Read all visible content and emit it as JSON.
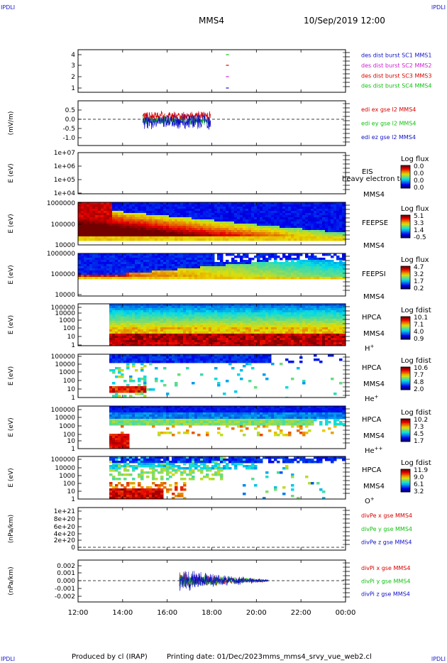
{
  "corner_label": "IPDLI",
  "header": {
    "spacecraft": "MMS4",
    "datetime": "10/Sep/2019 12:00"
  },
  "footer": {
    "produced_by": "Produced by cl (IRAP)",
    "printing_date": "Printing date: 01/Dec/2023",
    "script": "mms_mms4_srvy_vue_web2.cl"
  },
  "colors": {
    "red": "#d80000",
    "green": "#10c010",
    "blue": "#1010c8",
    "magenta": "#d020d0",
    "axis": "#000000"
  },
  "time_axis": {
    "ticks": [
      "12:00",
      "14:00",
      "16:00",
      "18:00",
      "20:00",
      "22:00",
      "00:00"
    ],
    "start_hour": 12,
    "end_hour": 24
  },
  "chart_data": [
    {
      "type": "line",
      "id": "burst",
      "yticks": [
        "4",
        "3",
        "2",
        "1"
      ],
      "legend": [
        {
          "text": "des dist burst SC1 MMS1",
          "color": "#1010c8"
        },
        {
          "text": "des dist burst SC2 MMS2",
          "color": "#d020d0"
        },
        {
          "text": "des dist burst SC3 MMS3",
          "color": "#d80000"
        },
        {
          "text": "des dist burst SC4 MMS4",
          "color": "#10c010"
        }
      ],
      "markers": [
        {
          "sc": 4,
          "t": 18.7,
          "color": "#10c010"
        },
        {
          "sc": 3,
          "t": 18.7,
          "color": "#d80000"
        },
        {
          "sc": 2,
          "t": 18.7,
          "color": "#d020d0"
        },
        {
          "sc": 1,
          "t": 18.7,
          "color": "#1010c8"
        }
      ]
    },
    {
      "type": "line",
      "id": "edi",
      "ylabel": "(mV/m)",
      "yticks": [
        "0.5",
        "0.0",
        "-0.5",
        "-1.0"
      ],
      "ylim": [
        -1.2,
        0.9
      ],
      "legend": [
        {
          "text": "edi ex gse l2 MMS4",
          "color": "#d80000"
        },
        {
          "text": "edi ey gse l2 MMS4",
          "color": "#10c010"
        },
        {
          "text": "edi ez gse l2 MMS4",
          "color": "#1010c8"
        }
      ],
      "t_range": [
        14.9,
        17.95
      ]
    },
    {
      "type": "heatmap",
      "id": "eis",
      "ylabel": "E (eV)",
      "yticks": [
        "1e+07",
        "1e+06",
        "1e+05",
        "1e+04"
      ],
      "instrument": "EIS",
      "overlay_text": "heavy electron to",
      "sc": "MMS4",
      "colorbar": {
        "title": "Log flux",
        "labels": [
          "0.0",
          "0.0",
          "0.0",
          "0.0"
        ]
      }
    },
    {
      "type": "heatmap",
      "id": "feepse",
      "ylabel": "E (eV)",
      "yticks": [
        "1000000",
        "100000",
        "10000"
      ],
      "instrument": "FEEPSE",
      "sc": "MMS4",
      "colorbar": {
        "title": "Log flux",
        "labels": [
          "5.1",
          "3.3",
          "1.4",
          "-0.5"
        ]
      }
    },
    {
      "type": "heatmap",
      "id": "feepsi",
      "ylabel": "E (eV)",
      "yticks": [
        "1000000",
        "100000",
        "10000"
      ],
      "instrument": "FEEPSI",
      "sc": "MMS4",
      "colorbar": {
        "title": "Log flux",
        "labels": [
          "4.7",
          "3.2",
          "1.7",
          "0.2"
        ]
      }
    },
    {
      "type": "heatmap",
      "id": "hpca_h",
      "ylabel": "E (eV)",
      "yticks": [
        "100000",
        "10000",
        "1000",
        "100",
        "10",
        "1"
      ],
      "instrument": "HPCA",
      "sc": "MMS4",
      "species": "H",
      "charge": "+",
      "colorbar": {
        "title": "Log fdist",
        "labels": [
          "10.1",
          "7.1",
          "4.0",
          "0.9"
        ]
      }
    },
    {
      "type": "heatmap",
      "id": "hpca_he",
      "ylabel": "E (eV)",
      "yticks": [
        "100000",
        "10000",
        "1000",
        "100",
        "10",
        "1"
      ],
      "instrument": "HPCA",
      "sc": "MMS4",
      "species": "He",
      "charge": "+",
      "colorbar": {
        "title": "Log fdist",
        "labels": [
          "10.6",
          "7.7",
          "4.8",
          "2.0"
        ]
      }
    },
    {
      "type": "heatmap",
      "id": "hpca_hepp",
      "ylabel": "E (eV)",
      "yticks": [
        "100000",
        "10000",
        "1000",
        "100",
        "10",
        "1"
      ],
      "instrument": "HPCA",
      "sc": "MMS4",
      "species": "He",
      "charge": "++",
      "colorbar": {
        "title": "Log fdist",
        "labels": [
          "10.2",
          "7.3",
          "4.5",
          "1.7"
        ]
      }
    },
    {
      "type": "heatmap",
      "id": "hpca_o",
      "ylabel": "E (eV)",
      "yticks": [
        "100000",
        "10000",
        "1000",
        "100",
        "10",
        "1"
      ],
      "instrument": "HPCA",
      "sc": "MMS4",
      "species": "O",
      "charge": "+",
      "colorbar": {
        "title": "Log fdist",
        "labels": [
          "11.9",
          "9.0",
          "6.1",
          "3.2"
        ]
      }
    },
    {
      "type": "line",
      "id": "divpe",
      "ylabel": "(nPa/km)",
      "yticks": [
        "1e+21",
        "8e+20",
        "6e+20",
        "4e+20",
        "2e+20",
        "0"
      ],
      "ylim": [
        -1e+19,
        1.1e+21
      ],
      "legend": [
        {
          "text": "divPe x gse MMS4",
          "color": "#d80000"
        },
        {
          "text": "divPe y gse MMS4",
          "color": "#10c010"
        },
        {
          "text": "divPe z gse MMS4",
          "color": "#1010c8"
        }
      ]
    },
    {
      "type": "line",
      "id": "divpi",
      "ylabel": "(nPa/km)",
      "yticks": [
        "0.002",
        "0.001",
        "0.000",
        "-0.001",
        "-0.002"
      ],
      "ylim": [
        -0.0026,
        0.0027
      ],
      "legend": [
        {
          "text": "divPi x gse MMS4",
          "color": "#d80000"
        },
        {
          "text": "divPi y gse MMS4",
          "color": "#10c010"
        },
        {
          "text": "divPi z gse MMS4",
          "color": "#1010c8"
        }
      ],
      "t_range": [
        16.55,
        20.55
      ]
    }
  ]
}
